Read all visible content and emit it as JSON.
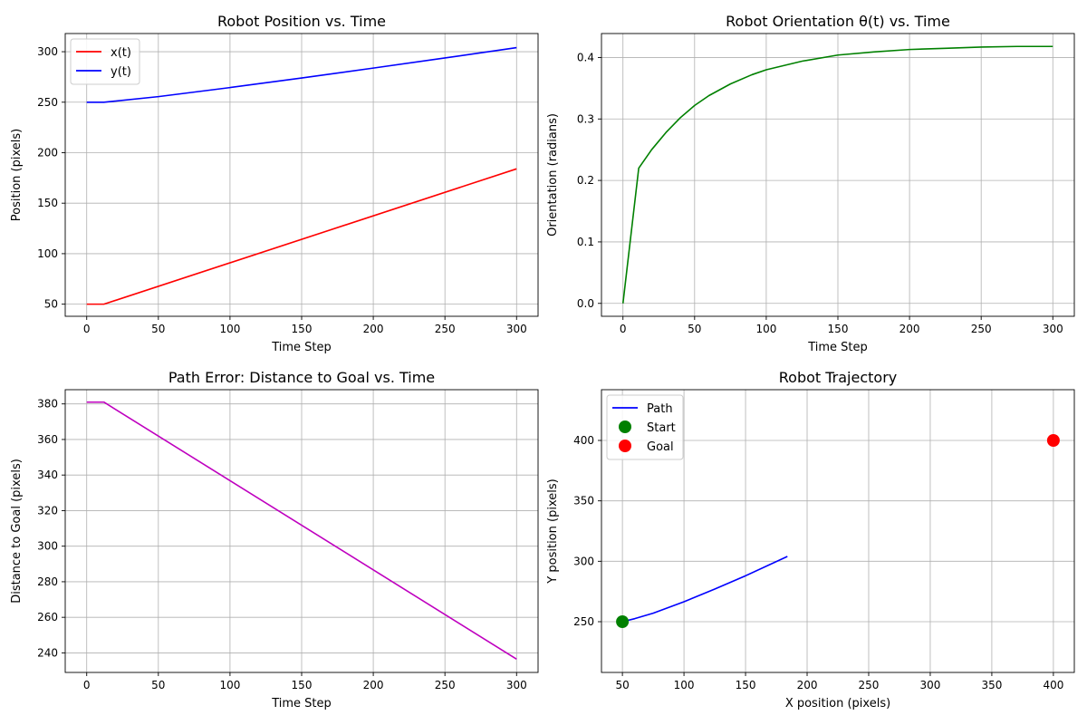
{
  "chart_data": [
    {
      "type": "line",
      "title": "Robot Position vs. Time",
      "xlabel": "Time Step",
      "ylabel": "Position (pixels)",
      "xlim": [
        -15,
        315
      ],
      "ylim": [
        38,
        318
      ],
      "xticks": [
        0,
        50,
        100,
        150,
        200,
        250,
        300
      ],
      "yticks": [
        50,
        100,
        150,
        200,
        250,
        300
      ],
      "grid": true,
      "legend": "upper-left",
      "series": [
        {
          "name": "x(t)",
          "color": "#ff0000",
          "x": [
            0,
            12,
            300
          ],
          "y": [
            50,
            50,
            184
          ]
        },
        {
          "name": "y(t)",
          "color": "#0000ff",
          "x": [
            0,
            12,
            50,
            100,
            150,
            200,
            250,
            300
          ],
          "y": [
            250,
            250,
            255.5,
            264.5,
            274,
            283.8,
            293.8,
            304
          ]
        }
      ]
    },
    {
      "type": "line",
      "title": "Robot Orientation θ(t) vs. Time",
      "xlabel": "Time Step",
      "ylabel": "Orientation (radians)",
      "xlim": [
        -15,
        315
      ],
      "ylim": [
        -0.021,
        0.439
      ],
      "xticks": [
        0,
        50,
        100,
        150,
        200,
        250,
        300
      ],
      "yticks": [
        0.0,
        0.1,
        0.2,
        0.3,
        0.4
      ],
      "tick_labels_y": [
        "0.0",
        "0.1",
        "0.2",
        "0.3",
        "0.4"
      ],
      "grid": true,
      "legend": "none",
      "series": [
        {
          "color": "#008000",
          "x": [
            0,
            11,
            20,
            30,
            40,
            50,
            60,
            75,
            90,
            100,
            125,
            150,
            175,
            200,
            225,
            250,
            275,
            300
          ],
          "y": [
            0,
            0.22,
            0.25,
            0.278,
            0.302,
            0.322,
            0.338,
            0.357,
            0.372,
            0.38,
            0.394,
            0.404,
            0.409,
            0.413,
            0.415,
            0.417,
            0.418,
            0.418
          ]
        }
      ]
    },
    {
      "type": "line",
      "title": "Path Error: Distance to Goal vs. Time",
      "xlabel": "Time Step",
      "ylabel": "Distance to Goal (pixels)",
      "xlim": [
        -15,
        315
      ],
      "ylim": [
        229,
        388
      ],
      "xticks": [
        0,
        50,
        100,
        150,
        200,
        250,
        300
      ],
      "yticks": [
        240,
        260,
        280,
        300,
        320,
        340,
        360,
        380
      ],
      "grid": true,
      "legend": "none",
      "series": [
        {
          "color": "#bf00bf",
          "x": [
            0,
            12,
            300
          ],
          "y": [
            381,
            381,
            236.5
          ]
        }
      ]
    },
    {
      "type": "scatter",
      "title": "Robot Trajectory",
      "xlabel": "X position (pixels)",
      "ylabel": "Y position (pixels)",
      "xlim": [
        33,
        417
      ],
      "ylim": [
        208,
        442
      ],
      "xticks": [
        50,
        100,
        150,
        200,
        250,
        300,
        350,
        400
      ],
      "yticks": [
        250,
        300,
        350,
        400
      ],
      "grid": true,
      "legend": "upper-left",
      "series": [
        {
          "name": "Path",
          "kind": "line",
          "color": "#0000ff",
          "x": [
            50,
            60,
            75,
            100,
            125,
            150,
            184
          ],
          "y": [
            250,
            252.5,
            257,
            266.5,
            277,
            288,
            304
          ]
        },
        {
          "name": "Start",
          "kind": "marker",
          "color": "#008000",
          "x": [
            50
          ],
          "y": [
            250
          ]
        },
        {
          "name": "Goal",
          "kind": "marker",
          "color": "#ff0000",
          "x": [
            400
          ],
          "y": [
            400
          ]
        }
      ]
    }
  ]
}
